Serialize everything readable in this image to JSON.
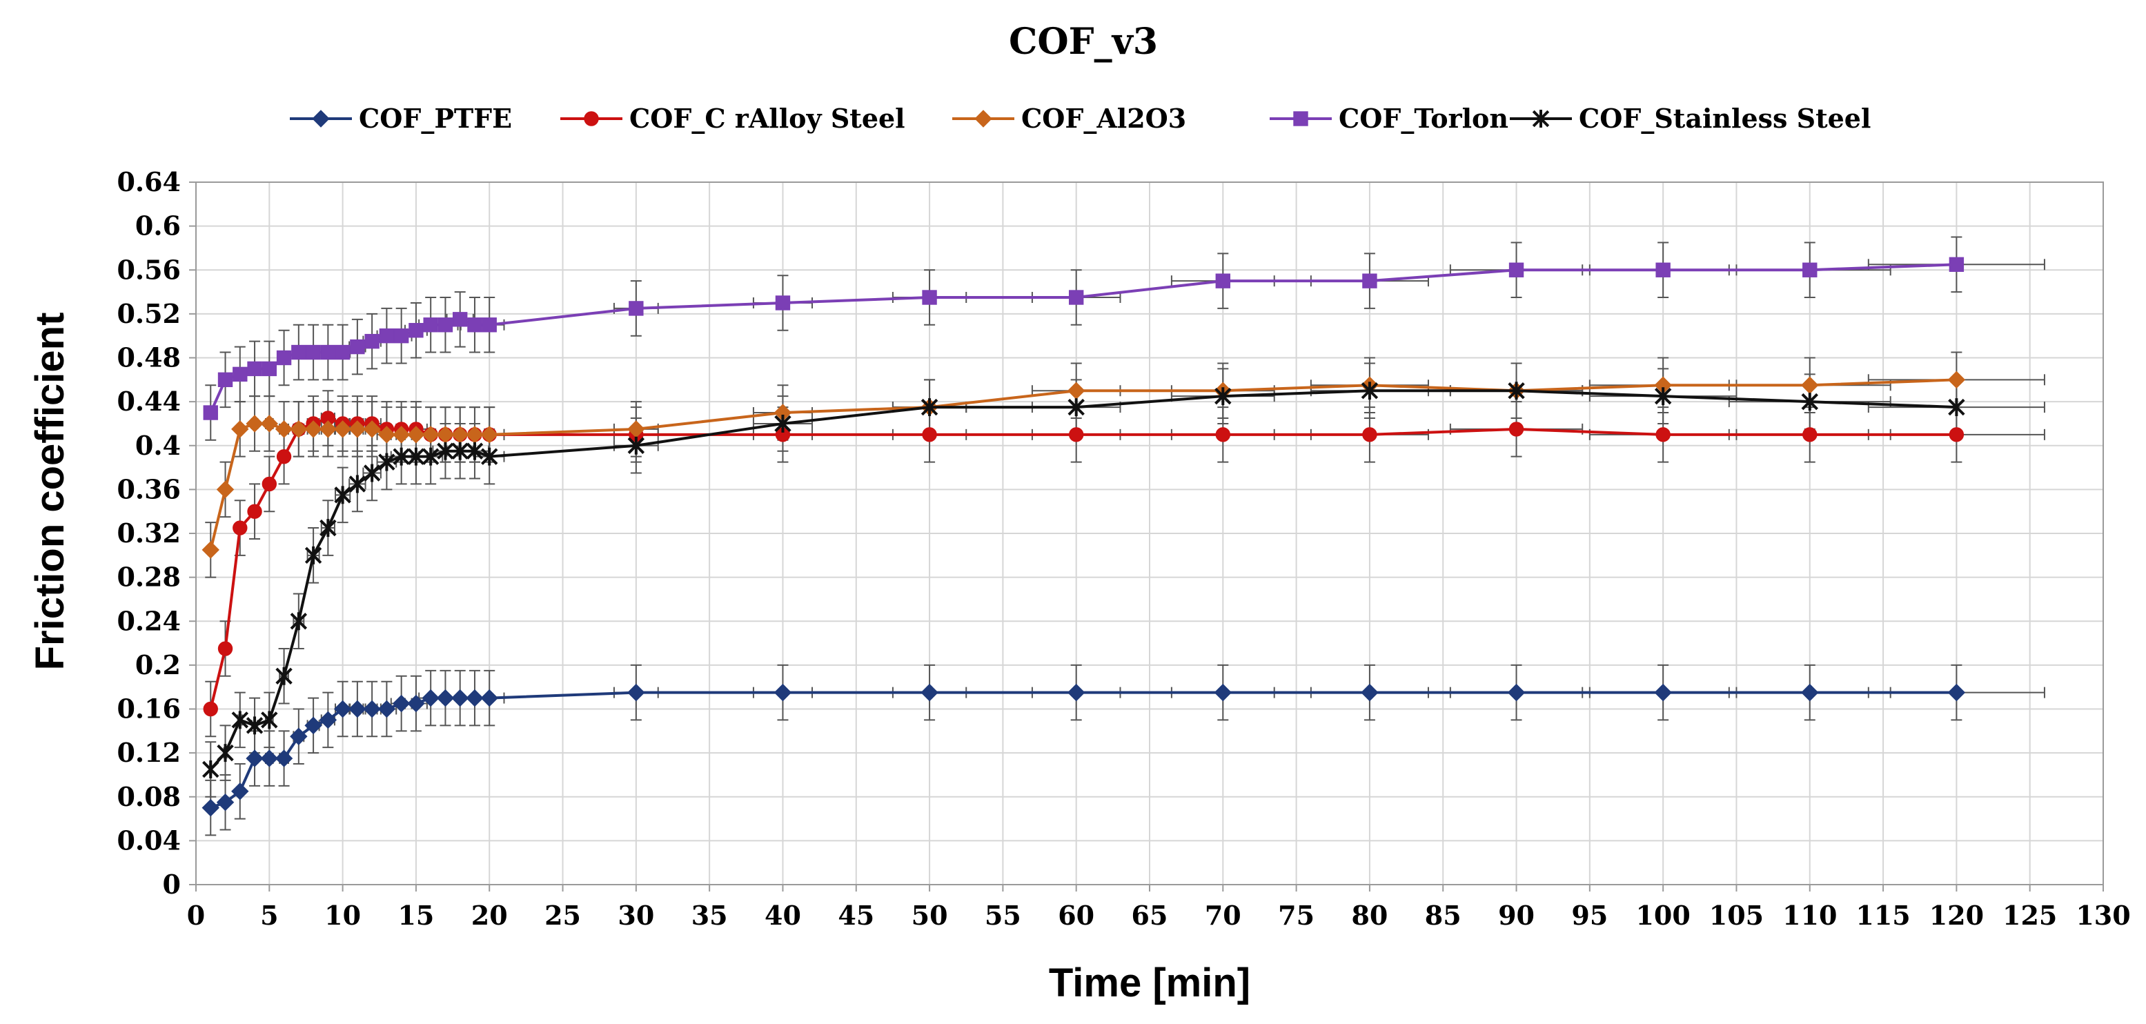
{
  "chart_data": {
    "type": "line",
    "title": "COF_v3",
    "xlabel": "Time [min]",
    "ylabel": "Friction coefficient",
    "xlim": [
      0,
      130
    ],
    "ylim": [
      0,
      0.64
    ],
    "x_ticks": [
      0,
      5,
      10,
      15,
      20,
      25,
      30,
      35,
      40,
      45,
      50,
      55,
      60,
      65,
      70,
      75,
      80,
      85,
      90,
      95,
      100,
      105,
      110,
      115,
      120,
      125,
      130
    ],
    "y_ticks": [
      0,
      0.04,
      0.08,
      0.12,
      0.16,
      0.2,
      0.24,
      0.28,
      0.32,
      0.36,
      0.4,
      0.44,
      0.48,
      0.52,
      0.56,
      0.6,
      0.64
    ],
    "grid": true,
    "legend_position": "top",
    "error_bars": {
      "y_error": 0.025,
      "x_error_fraction": 0.05
    },
    "x": [
      1,
      2,
      3,
      4,
      5,
      6,
      7,
      8,
      9,
      10,
      11,
      12,
      13,
      14,
      15,
      16,
      17,
      18,
      19,
      20,
      30,
      40,
      50,
      60,
      70,
      80,
      90,
      100,
      110,
      120
    ],
    "series": [
      {
        "name": "COF_PTFE",
        "color": "#1f3a7a",
        "marker": "diamond",
        "values": [
          0.07,
          0.075,
          0.085,
          0.115,
          0.115,
          0.115,
          0.135,
          0.145,
          0.15,
          0.16,
          0.16,
          0.16,
          0.16,
          0.165,
          0.165,
          0.17,
          0.17,
          0.17,
          0.17,
          0.17,
          0.175,
          0.175,
          0.175,
          0.175,
          0.175,
          0.175,
          0.175,
          0.175,
          0.175,
          0.175
        ]
      },
      {
        "name": "COF_C rAlloy Steel",
        "color": "#cc1111",
        "marker": "circle",
        "values": [
          0.16,
          0.215,
          0.325,
          0.34,
          0.365,
          0.39,
          0.415,
          0.42,
          0.425,
          0.42,
          0.42,
          0.42,
          0.415,
          0.415,
          0.415,
          0.41,
          0.41,
          0.41,
          0.41,
          0.41,
          0.41,
          0.41,
          0.41,
          0.41,
          0.41,
          0.41,
          0.415,
          0.41,
          0.41,
          0.41
        ]
      },
      {
        "name": "COF_Al2O3",
        "color": "#c8651b",
        "marker": "diamond",
        "values": [
          0.305,
          0.36,
          0.415,
          0.42,
          0.42,
          0.415,
          0.415,
          0.415,
          0.415,
          0.415,
          0.415,
          0.415,
          0.41,
          0.41,
          0.41,
          0.41,
          0.41,
          0.41,
          0.41,
          0.41,
          0.415,
          0.43,
          0.435,
          0.45,
          0.45,
          0.455,
          0.45,
          0.455,
          0.455,
          0.46
        ]
      },
      {
        "name": "COF_Torlon",
        "color": "#7b3fb5",
        "marker": "square",
        "values": [
          0.43,
          0.46,
          0.465,
          0.47,
          0.47,
          0.48,
          0.485,
          0.485,
          0.485,
          0.485,
          0.49,
          0.495,
          0.5,
          0.5,
          0.505,
          0.51,
          0.51,
          0.515,
          0.51,
          0.51,
          0.525,
          0.53,
          0.535,
          0.535,
          0.55,
          0.55,
          0.56,
          0.56,
          0.56,
          0.565
        ]
      },
      {
        "name": "COF_Stainless Steel",
        "color": "#111111",
        "marker": "asterisk",
        "values": [
          0.105,
          0.12,
          0.15,
          0.145,
          0.15,
          0.19,
          0.24,
          0.3,
          0.325,
          0.355,
          0.365,
          0.375,
          0.385,
          0.39,
          0.39,
          0.39,
          0.395,
          0.395,
          0.395,
          0.39,
          0.4,
          0.42,
          0.435,
          0.435,
          0.445,
          0.45,
          0.45,
          0.445,
          0.44,
          0.435
        ]
      }
    ]
  }
}
